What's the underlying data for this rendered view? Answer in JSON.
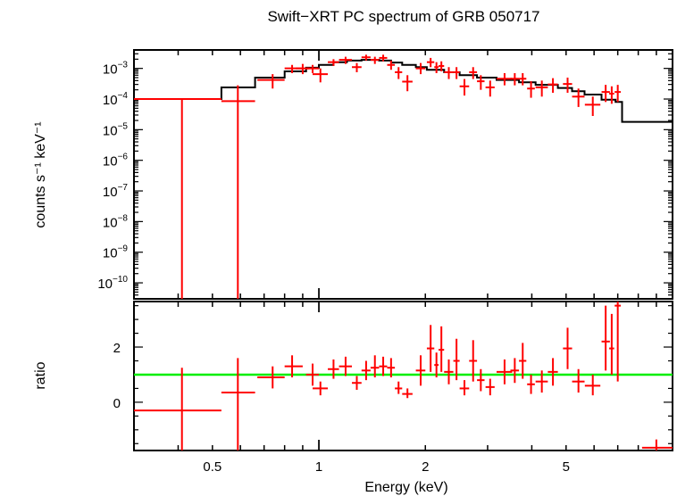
{
  "chart_data": [
    {
      "type": "scatter",
      "title": "Swift−XRT PC spectrum of GRB 050717",
      "xlabel": "",
      "ylabel": "counts s⁻¹ keV⁻¹",
      "xscale": "log",
      "yscale": "log",
      "xlim": [
        0.3,
        10
      ],
      "ylim": [
        3e-11,
        0.004
      ],
      "yticks": [
        {
          "base": "10",
          "exp": "−3",
          "value": 0.001
        },
        {
          "base": "10",
          "exp": "−4",
          "value": 0.0001
        },
        {
          "base": "10",
          "exp": "−5",
          "value": 1e-05
        },
        {
          "base": "10",
          "exp": "−6",
          "value": 1e-06
        },
        {
          "base": "10",
          "exp": "−7",
          "value": 1e-07
        },
        {
          "base": "10",
          "exp": "−8",
          "value": 1e-08
        },
        {
          "base": "10",
          "exp": "−9",
          "value": 1e-09
        },
        {
          "base": "10",
          "exp": "−10",
          "value": 1e-10
        }
      ],
      "grid": false,
      "series": [
        {
          "kind": "data",
          "color": "#ff0000",
          "points": [
            {
              "x": 0.41,
              "xlo": 0.3,
              "xhi": 0.53,
              "y": 0.0001,
              "ylo": 3e-11,
              "yhi": 0.0001
            },
            {
              "x": 0.59,
              "xlo": 0.53,
              "xhi": 0.66,
              "y": 8.5e-05,
              "ylo": 3e-11,
              "yhi": 0.00028
            },
            {
              "x": 0.74,
              "xlo": 0.67,
              "xhi": 0.8,
              "y": 0.00042,
              "ylo": 0.00022,
              "yhi": 0.00065
            },
            {
              "x": 0.84,
              "xlo": 0.8,
              "xhi": 0.9,
              "y": 0.001,
              "ylo": 0.0007,
              "yhi": 0.0013
            },
            {
              "x": 0.9,
              "xlo": 0.86,
              "xhi": 0.94,
              "y": 0.001,
              "ylo": 0.00065,
              "yhi": 0.0014
            },
            {
              "x": 0.96,
              "xlo": 0.92,
              "xhi": 1.0,
              "y": 0.001,
              "ylo": 0.0007,
              "yhi": 0.0013
            },
            {
              "x": 1.01,
              "xlo": 0.96,
              "xhi": 1.06,
              "y": 0.00065,
              "ylo": 0.00035,
              "yhi": 0.001
            },
            {
              "x": 1.1,
              "xlo": 1.06,
              "xhi": 1.14,
              "y": 0.0016,
              "ylo": 0.0012,
              "yhi": 0.002
            },
            {
              "x": 1.19,
              "xlo": 1.14,
              "xhi": 1.24,
              "y": 0.0019,
              "ylo": 0.0014,
              "yhi": 0.0024
            },
            {
              "x": 1.28,
              "xlo": 1.24,
              "xhi": 1.32,
              "y": 0.0011,
              "ylo": 0.00075,
              "yhi": 0.0015
            },
            {
              "x": 1.36,
              "xlo": 1.32,
              "xhi": 1.4,
              "y": 0.0023,
              "ylo": 0.0018,
              "yhi": 0.0028
            },
            {
              "x": 1.44,
              "xlo": 1.4,
              "xhi": 1.48,
              "y": 0.0019,
              "ylo": 0.0014,
              "yhi": 0.0024
            },
            {
              "x": 1.52,
              "xlo": 1.48,
              "xhi": 1.56,
              "y": 0.0022,
              "ylo": 0.0017,
              "yhi": 0.0028
            },
            {
              "x": 1.6,
              "xlo": 1.56,
              "xhi": 1.64,
              "y": 0.0013,
              "ylo": 0.0009,
              "yhi": 0.0018
            },
            {
              "x": 1.68,
              "xlo": 1.64,
              "xhi": 1.72,
              "y": 0.00075,
              "ylo": 0.00045,
              "yhi": 0.0011
            },
            {
              "x": 1.78,
              "xlo": 1.72,
              "xhi": 1.84,
              "y": 0.00037,
              "ylo": 0.00018,
              "yhi": 0.0006
            },
            {
              "x": 1.94,
              "xlo": 1.88,
              "xhi": 2.0,
              "y": 0.001,
              "ylo": 0.00065,
              "yhi": 0.0015
            },
            {
              "x": 2.07,
              "xlo": 2.02,
              "xhi": 2.12,
              "y": 0.0016,
              "ylo": 0.0011,
              "yhi": 0.0022
            },
            {
              "x": 2.15,
              "xlo": 2.12,
              "xhi": 2.18,
              "y": 0.0011,
              "ylo": 0.0007,
              "yhi": 0.0016
            },
            {
              "x": 2.22,
              "xlo": 2.18,
              "xhi": 2.26,
              "y": 0.0012,
              "ylo": 0.0008,
              "yhi": 0.0017
            },
            {
              "x": 2.33,
              "xlo": 2.26,
              "xhi": 2.4,
              "y": 0.00075,
              "ylo": 0.00045,
              "yhi": 0.0011
            },
            {
              "x": 2.45,
              "xlo": 2.4,
              "xhi": 2.5,
              "y": 0.00075,
              "ylo": 0.00045,
              "yhi": 0.0011
            },
            {
              "x": 2.58,
              "xlo": 2.5,
              "xhi": 2.66,
              "y": 0.00026,
              "ylo": 0.00013,
              "yhi": 0.00045
            },
            {
              "x": 2.73,
              "xlo": 2.66,
              "xhi": 2.8,
              "y": 0.00075,
              "ylo": 0.00045,
              "yhi": 0.0011
            },
            {
              "x": 2.87,
              "xlo": 2.8,
              "xhi": 2.94,
              "y": 0.00038,
              "ylo": 0.0002,
              "yhi": 0.0006
            },
            {
              "x": 3.05,
              "xlo": 2.96,
              "xhi": 3.14,
              "y": 0.00024,
              "ylo": 0.00012,
              "yhi": 0.0004
            },
            {
              "x": 3.35,
              "xlo": 3.18,
              "xhi": 3.52,
              "y": 0.00046,
              "ylo": 0.00028,
              "yhi": 0.0007
            },
            {
              "x": 3.58,
              "xlo": 3.48,
              "xhi": 3.68,
              "y": 0.00046,
              "ylo": 0.00028,
              "yhi": 0.0007
            },
            {
              "x": 3.77,
              "xlo": 3.68,
              "xhi": 3.86,
              "y": 0.00046,
              "ylo": 0.00028,
              "yhi": 0.0007
            },
            {
              "x": 3.98,
              "xlo": 3.88,
              "xhi": 4.08,
              "y": 0.00022,
              "ylo": 0.00011,
              "yhi": 0.00038
            },
            {
              "x": 4.27,
              "xlo": 4.1,
              "xhi": 4.44,
              "y": 0.00024,
              "ylo": 0.00012,
              "yhi": 0.0004
            },
            {
              "x": 4.59,
              "xlo": 4.44,
              "xhi": 4.74,
              "y": 0.0003,
              "ylo": 0.00016,
              "yhi": 0.00048
            },
            {
              "x": 5.05,
              "xlo": 4.9,
              "xhi": 5.2,
              "y": 0.00031,
              "ylo": 0.00016,
              "yhi": 0.0005
            },
            {
              "x": 5.42,
              "xlo": 5.2,
              "xhi": 5.64,
              "y": 0.00012,
              "ylo": 5.5e-05,
              "yhi": 0.00022
            },
            {
              "x": 5.95,
              "xlo": 5.65,
              "xhi": 6.25,
              "y": 6.5e-05,
              "ylo": 2.8e-05,
              "yhi": 0.00012
            },
            {
              "x": 6.47,
              "xlo": 6.3,
              "xhi": 6.65,
              "y": 0.00017,
              "ylo": 8e-05,
              "yhi": 0.00029
            },
            {
              "x": 6.73,
              "xlo": 6.62,
              "xhi": 6.84,
              "y": 0.00015,
              "ylo": 7e-05,
              "yhi": 0.00026
            },
            {
              "x": 7.0,
              "xlo": 6.86,
              "xhi": 7.14,
              "y": 0.00017,
              "ylo": 8e-05,
              "yhi": 0.00029
            }
          ]
        },
        {
          "kind": "model",
          "color": "#000000",
          "steps": [
            {
              "x0": 0.3,
              "x1": 0.53,
              "y": 0.0001
            },
            {
              "x0": 0.53,
              "x1": 0.66,
              "y": 0.00024
            },
            {
              "x0": 0.66,
              "x1": 0.8,
              "y": 0.0005
            },
            {
              "x0": 0.8,
              "x1": 0.92,
              "y": 0.0008
            },
            {
              "x0": 0.92,
              "x1": 1.0,
              "y": 0.00105
            },
            {
              "x0": 1.0,
              "x1": 1.1,
              "y": 0.0013
            },
            {
              "x0": 1.1,
              "x1": 1.2,
              "y": 0.0016
            },
            {
              "x0": 1.2,
              "x1": 1.32,
              "y": 0.0018
            },
            {
              "x0": 1.32,
              "x1": 1.48,
              "y": 0.0019
            },
            {
              "x0": 1.48,
              "x1": 1.6,
              "y": 0.0018
            },
            {
              "x0": 1.6,
              "x1": 1.72,
              "y": 0.00155
            },
            {
              "x0": 1.72,
              "x1": 1.88,
              "y": 0.0013
            },
            {
              "x0": 1.88,
              "x1": 2.02,
              "y": 0.0011
            },
            {
              "x0": 2.02,
              "x1": 2.26,
              "y": 0.0009
            },
            {
              "x0": 2.26,
              "x1": 2.5,
              "y": 0.00075
            },
            {
              "x0": 2.5,
              "x1": 2.8,
              "y": 0.0006
            },
            {
              "x0": 2.8,
              "x1": 3.18,
              "y": 0.0005
            },
            {
              "x0": 3.18,
              "x1": 3.68,
              "y": 0.00042
            },
            {
              "x0": 3.68,
              "x1": 4.1,
              "y": 0.00035
            },
            {
              "x0": 4.1,
              "x1": 4.74,
              "y": 0.00029
            },
            {
              "x0": 4.74,
              "x1": 5.2,
              "y": 0.00023
            },
            {
              "x0": 5.2,
              "x1": 5.64,
              "y": 0.00018
            },
            {
              "x0": 5.64,
              "x1": 6.3,
              "y": 0.00014
            },
            {
              "x0": 6.3,
              "x1": 6.9,
              "y": 9.5e-05
            },
            {
              "x0": 6.9,
              "x1": 7.2,
              "y": 8e-05
            },
            {
              "x0": 7.2,
              "x1": 10.0,
              "y": 1.8e-05
            }
          ]
        }
      ]
    },
    {
      "type": "scatter",
      "title": "",
      "xlabel": "Energy (keV)",
      "ylabel": "ratio",
      "xscale": "log",
      "yscale": "linear",
      "xlim": [
        0.3,
        10
      ],
      "ylim": [
        -1.75,
        3.65
      ],
      "yticks": [
        {
          "label": "0",
          "value": 0
        },
        {
          "label": "2",
          "value": 2
        }
      ],
      "xticks": [
        {
          "label": "0.5",
          "value": 0.5
        },
        {
          "label": "1",
          "value": 1
        },
        {
          "label": "2",
          "value": 2
        },
        {
          "label": "5",
          "value": 5
        }
      ],
      "reference_line": {
        "y": 1,
        "color": "#00ee00"
      },
      "series": [
        {
          "kind": "data",
          "color": "#ff0000",
          "points": [
            {
              "x": 0.41,
              "xlo": 0.3,
              "xhi": 0.53,
              "y": -0.3,
              "ylo": -1.75,
              "yhi": 1.25
            },
            {
              "x": 0.59,
              "xlo": 0.53,
              "xhi": 0.66,
              "y": 0.35,
              "ylo": -1.75,
              "yhi": 1.6
            },
            {
              "x": 0.74,
              "xlo": 0.67,
              "xhi": 0.8,
              "y": 0.9,
              "ylo": 0.5,
              "yhi": 1.3
            },
            {
              "x": 0.84,
              "xlo": 0.8,
              "xhi": 0.9,
              "y": 1.3,
              "ylo": 0.9,
              "yhi": 1.7
            },
            {
              "x": 0.96,
              "xlo": 0.92,
              "xhi": 1.0,
              "y": 1.0,
              "ylo": 0.6,
              "yhi": 1.4
            },
            {
              "x": 1.01,
              "xlo": 0.96,
              "xhi": 1.06,
              "y": 0.5,
              "ylo": 0.25,
              "yhi": 0.75
            },
            {
              "x": 1.1,
              "xlo": 1.06,
              "xhi": 1.14,
              "y": 1.2,
              "ylo": 0.85,
              "yhi": 1.55
            },
            {
              "x": 1.19,
              "xlo": 1.14,
              "xhi": 1.24,
              "y": 1.3,
              "ylo": 0.95,
              "yhi": 1.65
            },
            {
              "x": 1.28,
              "xlo": 1.24,
              "xhi": 1.32,
              "y": 0.7,
              "ylo": 0.45,
              "yhi": 0.95
            },
            {
              "x": 1.36,
              "xlo": 1.32,
              "xhi": 1.4,
              "y": 1.15,
              "ylo": 0.8,
              "yhi": 1.5
            },
            {
              "x": 1.44,
              "xlo": 1.4,
              "xhi": 1.48,
              "y": 1.25,
              "ylo": 0.9,
              "yhi": 1.7
            },
            {
              "x": 1.52,
              "xlo": 1.48,
              "xhi": 1.56,
              "y": 1.3,
              "ylo": 0.95,
              "yhi": 1.65
            },
            {
              "x": 1.6,
              "xlo": 1.56,
              "xhi": 1.64,
              "y": 1.25,
              "ylo": 0.9,
              "yhi": 1.6
            },
            {
              "x": 1.68,
              "xlo": 1.64,
              "xhi": 1.72,
              "y": 0.5,
              "ylo": 0.3,
              "yhi": 0.75
            },
            {
              "x": 1.78,
              "xlo": 1.72,
              "xhi": 1.84,
              "y": 0.3,
              "ylo": 0.15,
              "yhi": 0.5
            },
            {
              "x": 1.94,
              "xlo": 1.88,
              "xhi": 2.0,
              "y": 1.15,
              "ylo": 0.6,
              "yhi": 1.7
            },
            {
              "x": 2.07,
              "xlo": 2.02,
              "xhi": 2.12,
              "y": 1.95,
              "ylo": 1.1,
              "yhi": 2.8
            },
            {
              "x": 2.15,
              "xlo": 2.12,
              "xhi": 2.18,
              "y": 1.35,
              "ylo": 0.9,
              "yhi": 1.8
            },
            {
              "x": 2.22,
              "xlo": 2.18,
              "xhi": 2.26,
              "y": 1.9,
              "ylo": 1.1,
              "yhi": 2.75
            },
            {
              "x": 2.33,
              "xlo": 2.26,
              "xhi": 2.4,
              "y": 1.1,
              "ylo": 0.65,
              "yhi": 1.55
            },
            {
              "x": 2.45,
              "xlo": 2.4,
              "xhi": 2.5,
              "y": 1.5,
              "ylo": 0.8,
              "yhi": 2.3
            },
            {
              "x": 2.58,
              "xlo": 2.5,
              "xhi": 2.66,
              "y": 0.5,
              "ylo": 0.25,
              "yhi": 0.8
            },
            {
              "x": 2.73,
              "xlo": 2.66,
              "xhi": 2.8,
              "y": 1.5,
              "ylo": 0.75,
              "yhi": 2.25
            },
            {
              "x": 2.87,
              "xlo": 2.8,
              "xhi": 2.94,
              "y": 0.8,
              "ylo": 0.4,
              "yhi": 1.2
            },
            {
              "x": 3.05,
              "xlo": 2.96,
              "xhi": 3.14,
              "y": 0.55,
              "ylo": 0.25,
              "yhi": 0.85
            },
            {
              "x": 3.35,
              "xlo": 3.18,
              "xhi": 3.52,
              "y": 1.1,
              "ylo": 0.65,
              "yhi": 1.55
            },
            {
              "x": 3.58,
              "xlo": 3.48,
              "xhi": 3.68,
              "y": 1.15,
              "ylo": 0.7,
              "yhi": 1.6
            },
            {
              "x": 3.77,
              "xlo": 3.68,
              "xhi": 3.86,
              "y": 1.5,
              "ylo": 0.85,
              "yhi": 2.15
            },
            {
              "x": 3.98,
              "xlo": 3.88,
              "xhi": 4.08,
              "y": 0.65,
              "ylo": 0.3,
              "yhi": 1.0
            },
            {
              "x": 4.27,
              "xlo": 4.1,
              "xhi": 4.44,
              "y": 0.75,
              "ylo": 0.35,
              "yhi": 1.15
            },
            {
              "x": 4.59,
              "xlo": 4.44,
              "xhi": 4.74,
              "y": 1.1,
              "ylo": 0.6,
              "yhi": 1.6
            },
            {
              "x": 5.05,
              "xlo": 4.9,
              "xhi": 5.2,
              "y": 1.95,
              "ylo": 1.2,
              "yhi": 2.7
            },
            {
              "x": 5.42,
              "xlo": 5.2,
              "xhi": 5.64,
              "y": 0.75,
              "ylo": 0.35,
              "yhi": 1.2
            },
            {
              "x": 5.95,
              "xlo": 5.65,
              "xhi": 6.25,
              "y": 0.6,
              "ylo": 0.25,
              "yhi": 1.0
            },
            {
              "x": 6.47,
              "xlo": 6.3,
              "xhi": 6.65,
              "y": 2.2,
              "ylo": 1.15,
              "yhi": 3.5
            },
            {
              "x": 6.73,
              "xlo": 6.62,
              "xhi": 6.84,
              "y": 1.95,
              "ylo": 1.0,
              "yhi": 3.2
            },
            {
              "x": 7.0,
              "xlo": 6.86,
              "xhi": 7.14,
              "y": 3.5,
              "ylo": 0.75,
              "yhi": 3.65
            },
            {
              "x": 9.0,
              "xlo": 8.2,
              "xhi": 10.0,
              "y": -1.65,
              "ylo": -1.75,
              "yhi": -1.35
            }
          ]
        }
      ]
    }
  ]
}
